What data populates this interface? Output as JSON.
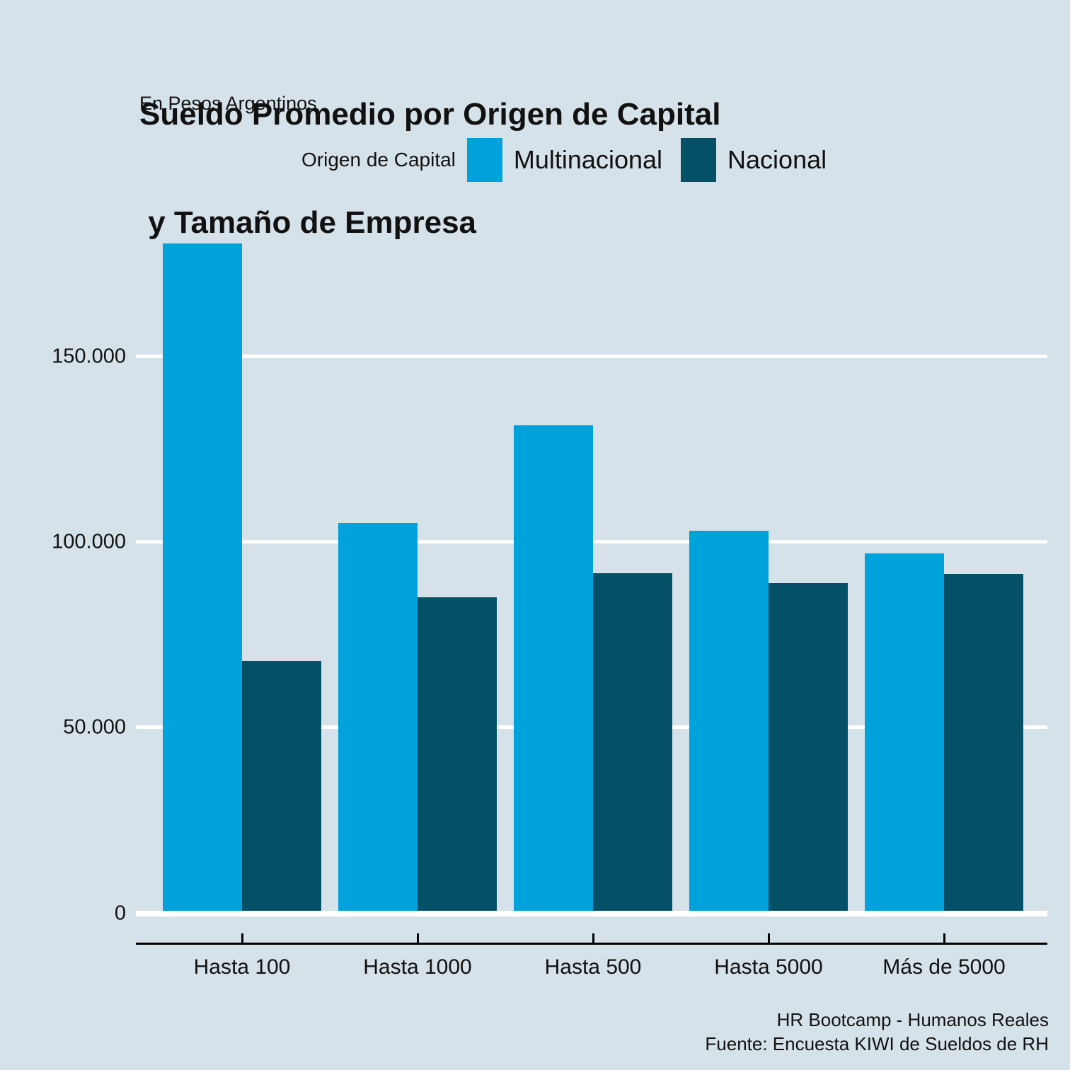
{
  "header": {
    "title_line1": "Sueldo Promedio por Origen de Capital",
    "title_line2": " y Tamaño de Empresa",
    "subtitle": "En Pesos Argentinos"
  },
  "legend": {
    "title": "Origen de Capital"
  },
  "caption": {
    "line1": "HR Bootcamp - Humanos Reales",
    "line2": "Fuente: Encuesta KIWI de Sueldos de RH"
  },
  "colors": {
    "background": "#D6E2E9",
    "multinacional": "#00A2DC",
    "nacional": "#045066",
    "gridline": "#FFFFFF",
    "axis": "#000000",
    "text": "#111111"
  },
  "chart_data": {
    "type": "bar",
    "title": "Sueldo Promedio por Origen de Capital y Tamaño de Empresa",
    "subtitle": "En Pesos Argentinos",
    "legend_title": "Origen de Capital",
    "legend_position": "top",
    "caption": "HR Bootcamp - Humanos Reales | Fuente: Encuesta KIWI de Sueldos de RH",
    "xlabel": "",
    "ylabel": "",
    "grid": "horizontal white gridlines on light blue-gray panel",
    "categories": [
      "Hasta 100",
      "Hasta 1000",
      "Hasta 500",
      "Hasta 5000",
      "Más de 5000"
    ],
    "series": [
      {
        "name": "Multinacional",
        "color": "#00A2DC",
        "values": [
          180000,
          104500,
          131000,
          102400,
          96300
        ]
      },
      {
        "name": "Nacional",
        "color": "#045066",
        "values": [
          67400,
          84600,
          91100,
          88300,
          90800
        ]
      }
    ],
    "ylim": [
      0,
      190000
    ],
    "yticks": [
      0,
      50000,
      100000,
      150000
    ],
    "ytick_labels": [
      "0",
      "50.000",
      "100.000",
      "150.000"
    ]
  }
}
